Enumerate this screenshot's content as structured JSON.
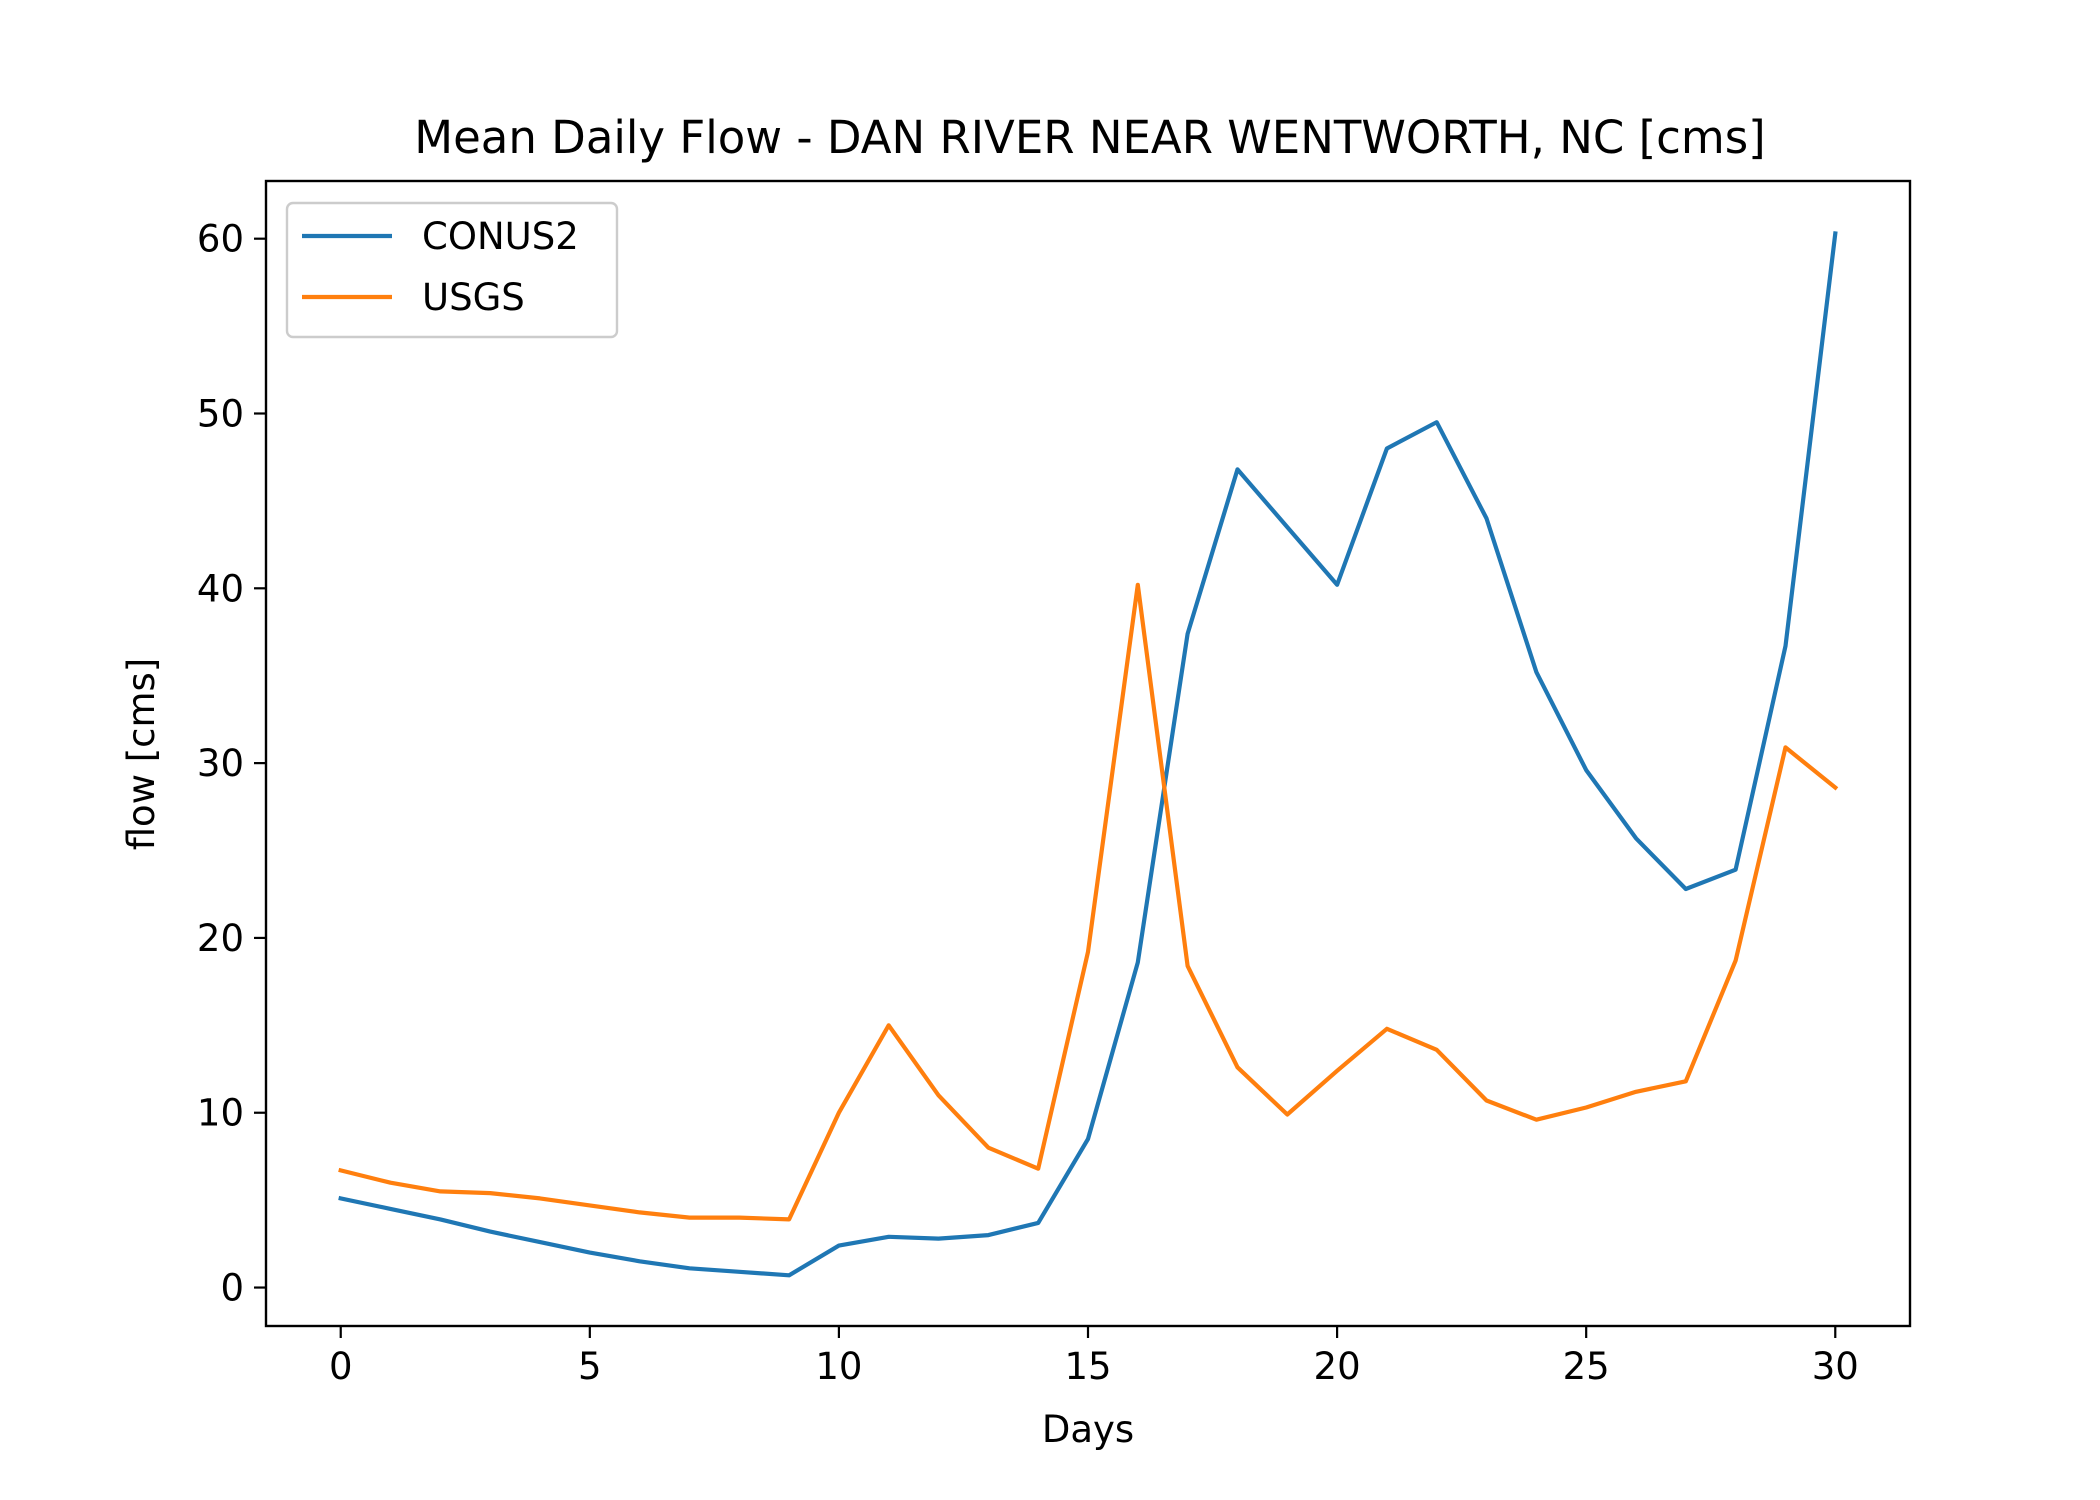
{
  "chart_data": {
    "type": "line",
    "title": "Mean Daily Flow - DAN RIVER NEAR WENTWORTH, NC [cms]",
    "xlabel": "Days",
    "ylabel": "flow [cms]",
    "xlim": [
      -1.5,
      31.5
    ],
    "ylim": [
      -2.2,
      63.3
    ],
    "xticks": [
      0,
      5,
      10,
      15,
      20,
      25,
      30
    ],
    "yticks": [
      0,
      10,
      20,
      30,
      40,
      50,
      60
    ],
    "grid": false,
    "legend_position": "top-left",
    "x": [
      0,
      1,
      2,
      3,
      4,
      5,
      6,
      7,
      8,
      9,
      10,
      11,
      12,
      13,
      14,
      15,
      16,
      17,
      18,
      19,
      20,
      21,
      22,
      23,
      24,
      25,
      26,
      27,
      28,
      29,
      30
    ],
    "series": [
      {
        "name": "CONUS2",
        "color": "#1f77b4",
        "values": [
          5.1,
          4.5,
          3.9,
          3.2,
          2.6,
          2.0,
          1.5,
          1.1,
          0.9,
          0.7,
          2.4,
          2.9,
          2.8,
          3.0,
          3.7,
          8.5,
          18.6,
          37.4,
          46.8,
          43.5,
          40.2,
          48.0,
          49.5,
          44.0,
          35.2,
          29.6,
          25.7,
          22.8,
          23.9,
          36.7,
          60.3
        ]
      },
      {
        "name": "USGS",
        "color": "#ff7f0e",
        "values": [
          6.7,
          6.0,
          5.5,
          5.4,
          5.1,
          4.7,
          4.3,
          4.0,
          4.0,
          3.9,
          10.0,
          15.0,
          11.0,
          8.0,
          6.8,
          19.2,
          40.2,
          18.4,
          12.6,
          9.9,
          12.4,
          14.8,
          13.6,
          10.7,
          9.6,
          10.3,
          11.2,
          11.8,
          18.7,
          30.9,
          28.6
        ]
      }
    ]
  }
}
